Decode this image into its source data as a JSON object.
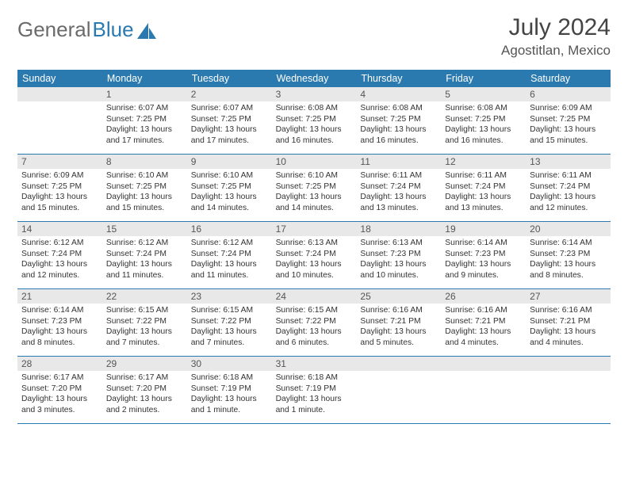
{
  "logo": {
    "general": "General",
    "blue": "Blue"
  },
  "title": "July 2024",
  "location": "Agostitlan, Mexico",
  "colors": {
    "header_bg": "#2a7ab0",
    "header_text": "#ffffff",
    "daynum_bg": "#e8e8e8",
    "border": "#2a7ab0",
    "body_text": "#333333",
    "logo_general": "#6b6b6b",
    "logo_blue": "#2a7ab0",
    "logo_shape": "#2a7ab0"
  },
  "typography": {
    "title_fontsize": 30,
    "location_fontsize": 17,
    "weekday_fontsize": 12.5,
    "daynum_fontsize": 12,
    "content_fontsize": 10.3
  },
  "weekdays": [
    "Sunday",
    "Monday",
    "Tuesday",
    "Wednesday",
    "Thursday",
    "Friday",
    "Saturday"
  ],
  "weeks": [
    [
      {
        "day": "",
        "sunrise": "",
        "sunset": "",
        "daylight": ""
      },
      {
        "day": "1",
        "sunrise": "Sunrise: 6:07 AM",
        "sunset": "Sunset: 7:25 PM",
        "daylight": "Daylight: 13 hours and 17 minutes."
      },
      {
        "day": "2",
        "sunrise": "Sunrise: 6:07 AM",
        "sunset": "Sunset: 7:25 PM",
        "daylight": "Daylight: 13 hours and 17 minutes."
      },
      {
        "day": "3",
        "sunrise": "Sunrise: 6:08 AM",
        "sunset": "Sunset: 7:25 PM",
        "daylight": "Daylight: 13 hours and 16 minutes."
      },
      {
        "day": "4",
        "sunrise": "Sunrise: 6:08 AM",
        "sunset": "Sunset: 7:25 PM",
        "daylight": "Daylight: 13 hours and 16 minutes."
      },
      {
        "day": "5",
        "sunrise": "Sunrise: 6:08 AM",
        "sunset": "Sunset: 7:25 PM",
        "daylight": "Daylight: 13 hours and 16 minutes."
      },
      {
        "day": "6",
        "sunrise": "Sunrise: 6:09 AM",
        "sunset": "Sunset: 7:25 PM",
        "daylight": "Daylight: 13 hours and 15 minutes."
      }
    ],
    [
      {
        "day": "7",
        "sunrise": "Sunrise: 6:09 AM",
        "sunset": "Sunset: 7:25 PM",
        "daylight": "Daylight: 13 hours and 15 minutes."
      },
      {
        "day": "8",
        "sunrise": "Sunrise: 6:10 AM",
        "sunset": "Sunset: 7:25 PM",
        "daylight": "Daylight: 13 hours and 15 minutes."
      },
      {
        "day": "9",
        "sunrise": "Sunrise: 6:10 AM",
        "sunset": "Sunset: 7:25 PM",
        "daylight": "Daylight: 13 hours and 14 minutes."
      },
      {
        "day": "10",
        "sunrise": "Sunrise: 6:10 AM",
        "sunset": "Sunset: 7:25 PM",
        "daylight": "Daylight: 13 hours and 14 minutes."
      },
      {
        "day": "11",
        "sunrise": "Sunrise: 6:11 AM",
        "sunset": "Sunset: 7:24 PM",
        "daylight": "Daylight: 13 hours and 13 minutes."
      },
      {
        "day": "12",
        "sunrise": "Sunrise: 6:11 AM",
        "sunset": "Sunset: 7:24 PM",
        "daylight": "Daylight: 13 hours and 13 minutes."
      },
      {
        "day": "13",
        "sunrise": "Sunrise: 6:11 AM",
        "sunset": "Sunset: 7:24 PM",
        "daylight": "Daylight: 13 hours and 12 minutes."
      }
    ],
    [
      {
        "day": "14",
        "sunrise": "Sunrise: 6:12 AM",
        "sunset": "Sunset: 7:24 PM",
        "daylight": "Daylight: 13 hours and 12 minutes."
      },
      {
        "day": "15",
        "sunrise": "Sunrise: 6:12 AM",
        "sunset": "Sunset: 7:24 PM",
        "daylight": "Daylight: 13 hours and 11 minutes."
      },
      {
        "day": "16",
        "sunrise": "Sunrise: 6:12 AM",
        "sunset": "Sunset: 7:24 PM",
        "daylight": "Daylight: 13 hours and 11 minutes."
      },
      {
        "day": "17",
        "sunrise": "Sunrise: 6:13 AM",
        "sunset": "Sunset: 7:24 PM",
        "daylight": "Daylight: 13 hours and 10 minutes."
      },
      {
        "day": "18",
        "sunrise": "Sunrise: 6:13 AM",
        "sunset": "Sunset: 7:23 PM",
        "daylight": "Daylight: 13 hours and 10 minutes."
      },
      {
        "day": "19",
        "sunrise": "Sunrise: 6:14 AM",
        "sunset": "Sunset: 7:23 PM",
        "daylight": "Daylight: 13 hours and 9 minutes."
      },
      {
        "day": "20",
        "sunrise": "Sunrise: 6:14 AM",
        "sunset": "Sunset: 7:23 PM",
        "daylight": "Daylight: 13 hours and 8 minutes."
      }
    ],
    [
      {
        "day": "21",
        "sunrise": "Sunrise: 6:14 AM",
        "sunset": "Sunset: 7:23 PM",
        "daylight": "Daylight: 13 hours and 8 minutes."
      },
      {
        "day": "22",
        "sunrise": "Sunrise: 6:15 AM",
        "sunset": "Sunset: 7:22 PM",
        "daylight": "Daylight: 13 hours and 7 minutes."
      },
      {
        "day": "23",
        "sunrise": "Sunrise: 6:15 AM",
        "sunset": "Sunset: 7:22 PM",
        "daylight": "Daylight: 13 hours and 7 minutes."
      },
      {
        "day": "24",
        "sunrise": "Sunrise: 6:15 AM",
        "sunset": "Sunset: 7:22 PM",
        "daylight": "Daylight: 13 hours and 6 minutes."
      },
      {
        "day": "25",
        "sunrise": "Sunrise: 6:16 AM",
        "sunset": "Sunset: 7:21 PM",
        "daylight": "Daylight: 13 hours and 5 minutes."
      },
      {
        "day": "26",
        "sunrise": "Sunrise: 6:16 AM",
        "sunset": "Sunset: 7:21 PM",
        "daylight": "Daylight: 13 hours and 4 minutes."
      },
      {
        "day": "27",
        "sunrise": "Sunrise: 6:16 AM",
        "sunset": "Sunset: 7:21 PM",
        "daylight": "Daylight: 13 hours and 4 minutes."
      }
    ],
    [
      {
        "day": "28",
        "sunrise": "Sunrise: 6:17 AM",
        "sunset": "Sunset: 7:20 PM",
        "daylight": "Daylight: 13 hours and 3 minutes."
      },
      {
        "day": "29",
        "sunrise": "Sunrise: 6:17 AM",
        "sunset": "Sunset: 7:20 PM",
        "daylight": "Daylight: 13 hours and 2 minutes."
      },
      {
        "day": "30",
        "sunrise": "Sunrise: 6:18 AM",
        "sunset": "Sunset: 7:19 PM",
        "daylight": "Daylight: 13 hours and 1 minute."
      },
      {
        "day": "31",
        "sunrise": "Sunrise: 6:18 AM",
        "sunset": "Sunset: 7:19 PM",
        "daylight": "Daylight: 13 hours and 1 minute."
      },
      {
        "day": "",
        "sunrise": "",
        "sunset": "",
        "daylight": ""
      },
      {
        "day": "",
        "sunrise": "",
        "sunset": "",
        "daylight": ""
      },
      {
        "day": "",
        "sunrise": "",
        "sunset": "",
        "daylight": ""
      }
    ]
  ]
}
